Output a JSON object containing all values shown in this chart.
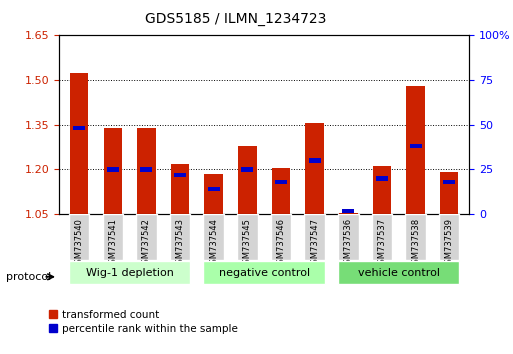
{
  "title": "GDS5185 / ILMN_1234723",
  "samples": [
    "GSM737540",
    "GSM737541",
    "GSM737542",
    "GSM737543",
    "GSM737544",
    "GSM737545",
    "GSM737546",
    "GSM737547",
    "GSM737536",
    "GSM737537",
    "GSM737538",
    "GSM737539"
  ],
  "red_values": [
    1.525,
    1.34,
    1.34,
    1.22,
    1.185,
    1.28,
    1.205,
    1.355,
    1.055,
    1.21,
    1.48,
    1.19
  ],
  "blue_percentiles": [
    48,
    25,
    25,
    22,
    14,
    25,
    18,
    30,
    2,
    20,
    38,
    18
  ],
  "ymin": 1.05,
  "ymax": 1.65,
  "y2min": 0,
  "y2max": 100,
  "yticks": [
    1.05,
    1.2,
    1.35,
    1.5,
    1.65
  ],
  "y2ticks": [
    0,
    25,
    50,
    75,
    100
  ],
  "bar_color": "#cc2200",
  "dot_color": "#0000cc",
  "groups": [
    {
      "label": "Wig-1 depletion",
      "start": 0,
      "end": 3,
      "color": "#ccffcc"
    },
    {
      "label": "negative control",
      "start": 4,
      "end": 7,
      "color": "#aaffaa"
    },
    {
      "label": "vehicle control",
      "start": 8,
      "end": 11,
      "color": "#77dd77"
    }
  ],
  "protocol_label": "protocol",
  "legend_red": "transformed count",
  "legend_blue": "percentile rank within the sample",
  "bar_width": 0.55,
  "background_color": "#ffffff",
  "plot_bg_color": "#ffffff"
}
